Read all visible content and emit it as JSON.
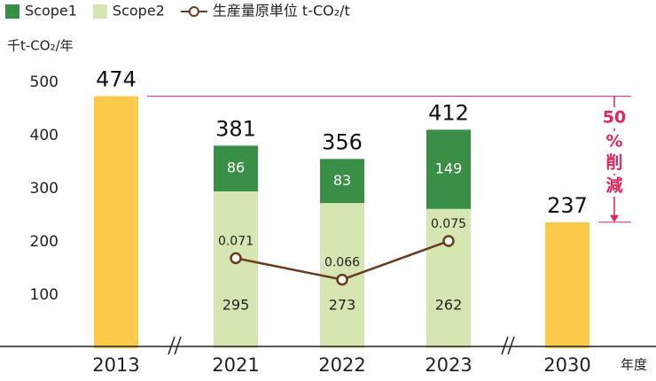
{
  "chart_data": {
    "type": "bar",
    "y_axis_label": "千t-CO₂/年",
    "x_axis_label": "年度",
    "categories": [
      "2013",
      "2021",
      "2022",
      "2023",
      "2030"
    ],
    "series": [
      {
        "name": "Scope1",
        "color": "#3a8f46",
        "values": [
          null,
          86,
          83,
          149,
          null
        ]
      },
      {
        "name": "Scope2",
        "color": "#d6e6b2",
        "values": [
          null,
          295,
          273,
          262,
          null
        ]
      },
      {
        "color": "#fdc94a",
        "values": [
          474,
          null,
          null,
          null,
          237
        ]
      },
      {
        "name": "生産量原単位 t-CO₂/t",
        "type": "line",
        "axis": "y2",
        "color": "#6b3a1f",
        "values": [
          null,
          0.071,
          0.066,
          0.075,
          null
        ]
      }
    ],
    "totals": [
      null,
      381,
      356,
      412,
      null
    ],
    "annotation": [
      "50",
      "%",
      "削",
      "減"
    ],
    "annotation_color": "#e6245a",
    "ylim": [
      0,
      500
    ],
    "yticks": [
      100,
      200,
      300,
      400,
      500
    ],
    "y2lim": [
      0.05,
      0.112
    ]
  }
}
